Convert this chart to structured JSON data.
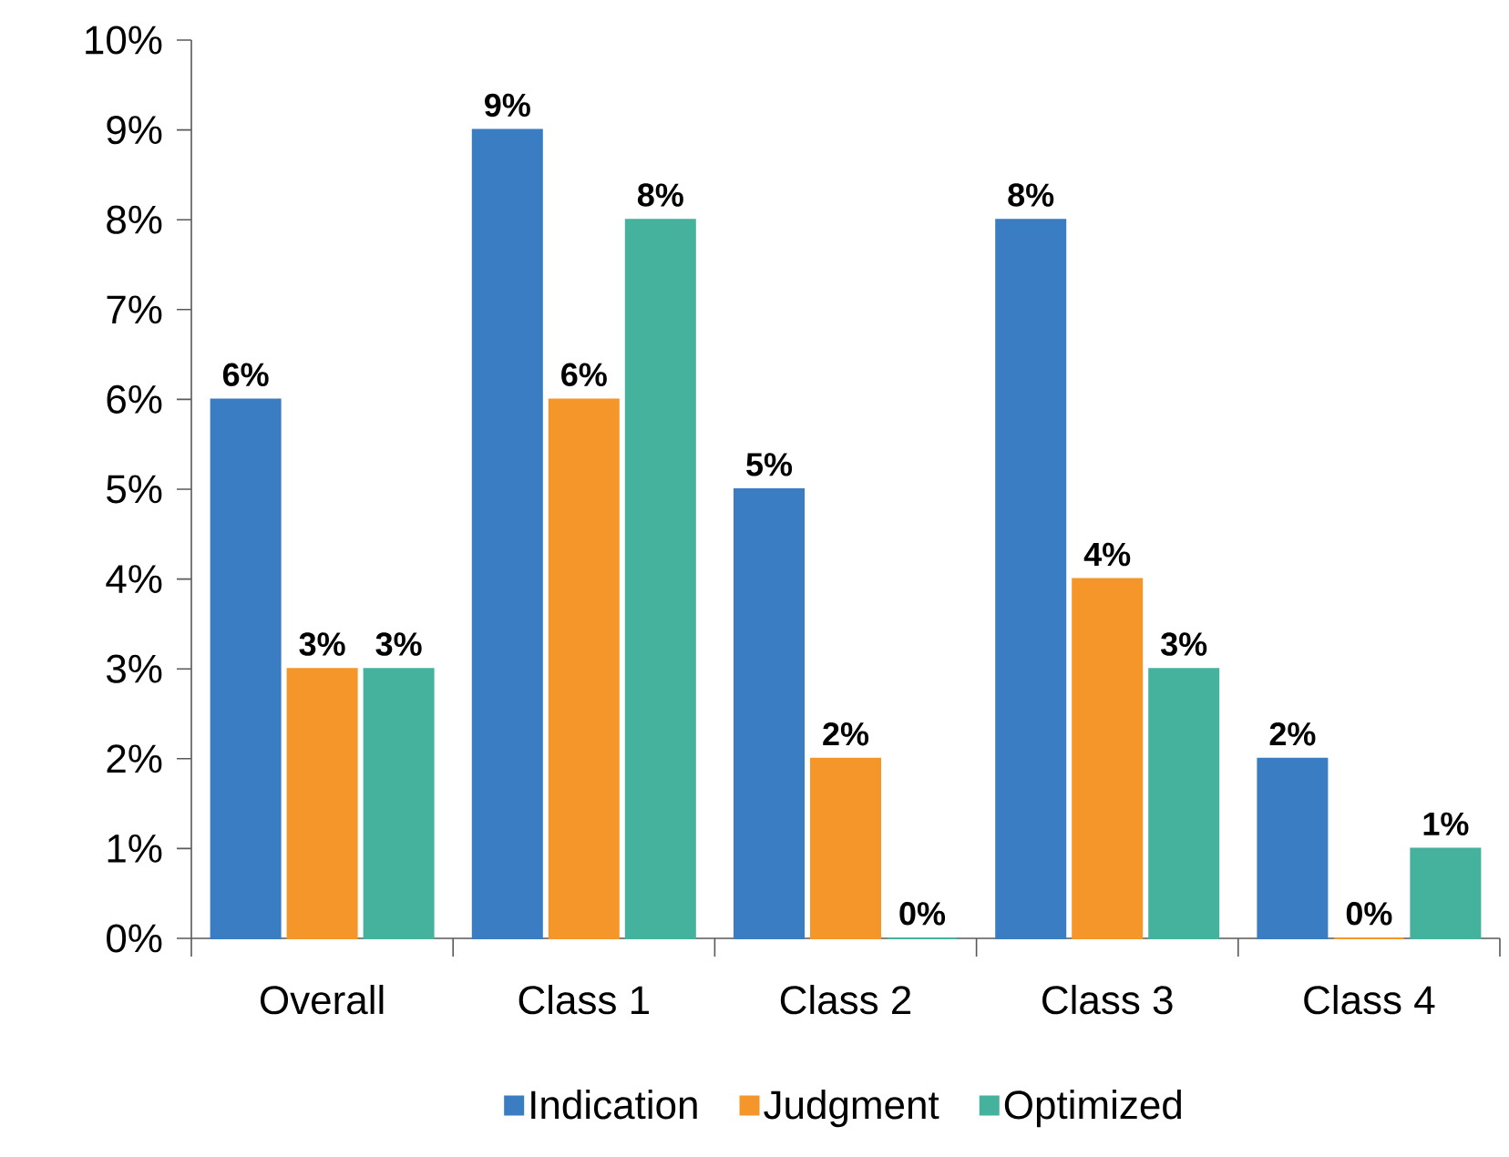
{
  "chart_data": {
    "type": "bar",
    "categories": [
      "Overall",
      "Class 1",
      "Class 2",
      "Class 3",
      "Class 4"
    ],
    "series": [
      {
        "name": "Indication",
        "color": "#3a7dc2",
        "values": [
          6,
          9,
          5,
          8,
          2
        ],
        "value_labels": [
          "6%",
          "9%",
          "5%",
          "8%",
          "2%"
        ]
      },
      {
        "name": "Judgment",
        "color": "#f5962a",
        "values": [
          3,
          6,
          2,
          4,
          0
        ],
        "value_labels": [
          "3%",
          "6%",
          "2%",
          "4%",
          "0%"
        ]
      },
      {
        "name": "Optimized",
        "color": "#45b29d",
        "values": [
          3,
          8,
          0,
          3,
          1
        ],
        "value_labels": [
          "3%",
          "8%",
          "0%",
          "3%",
          "1%"
        ]
      }
    ],
    "ylim": [
      0,
      10
    ],
    "yticks": [
      {
        "value": 0,
        "label": "0%"
      },
      {
        "value": 1,
        "label": "1%"
      },
      {
        "value": 2,
        "label": "2%"
      },
      {
        "value": 3,
        "label": "3%"
      },
      {
        "value": 4,
        "label": "4%"
      },
      {
        "value": 5,
        "label": "5%"
      },
      {
        "value": 6,
        "label": "6%"
      },
      {
        "value": 7,
        "label": "7%"
      },
      {
        "value": 8,
        "label": "8%"
      },
      {
        "value": 9,
        "label": "9%"
      },
      {
        "value": 10,
        "label": "10%"
      }
    ],
    "grid": false,
    "legend": "bottom"
  }
}
